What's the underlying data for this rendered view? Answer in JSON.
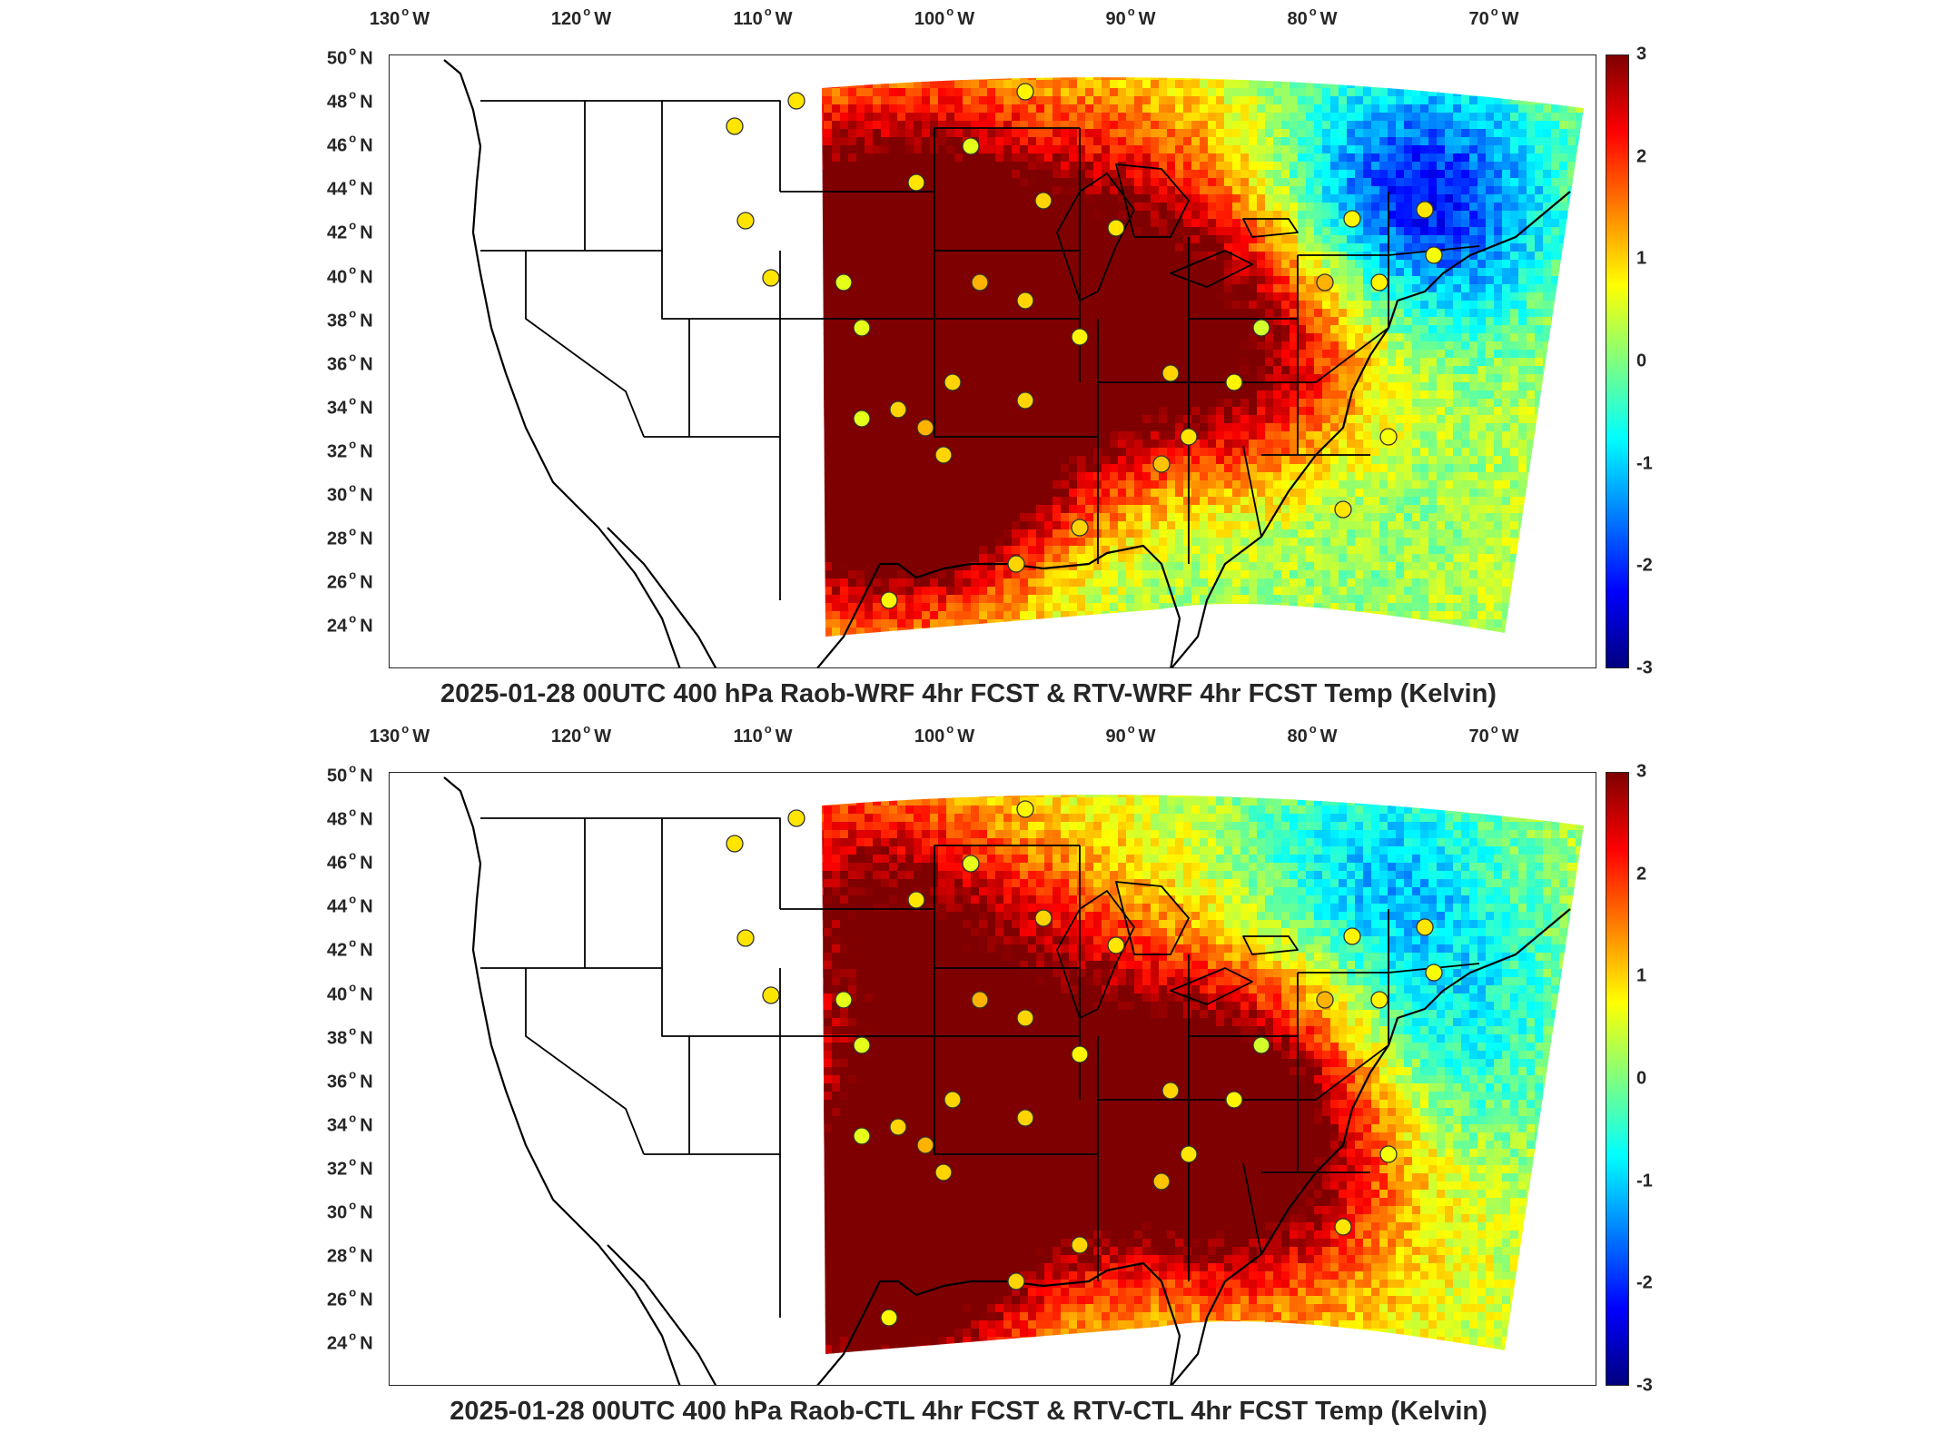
{
  "colorbar": {
    "ticks": [
      "3",
      "2",
      "1",
      "0",
      "-1",
      "-2",
      "-3"
    ],
    "colormap": "jet",
    "min": -3,
    "max": 3,
    "colors": [
      "#00007f",
      "#0000ff",
      "#007fff",
      "#00ffff",
      "#7fff7f",
      "#ffff00",
      "#ff7f00",
      "#ff0000",
      "#7f0000"
    ]
  },
  "axes": {
    "lon_labels": [
      "130",
      "120",
      "110",
      "100",
      "90",
      "80",
      "70"
    ],
    "lon_suffix": "W",
    "lat_labels": [
      "50",
      "48",
      "46",
      "44",
      "42",
      "40",
      "38",
      "36",
      "34",
      "32",
      "30",
      "28",
      "26",
      "24"
    ],
    "lat_suffix": "N",
    "degree_symbol": "o"
  },
  "panels": [
    {
      "title": "2025-01-28 00UTC 400 hPa Raob-WRF 4hr FCST & RTV-WRF 4hr FCST Temp (Kelvin)"
    },
    {
      "title": "2025-01-28 00UTC 400 hPa Raob-CTL 4hr FCST & RTV-CTL 4hr FCST Temp (Kelvin)"
    }
  ]
}
